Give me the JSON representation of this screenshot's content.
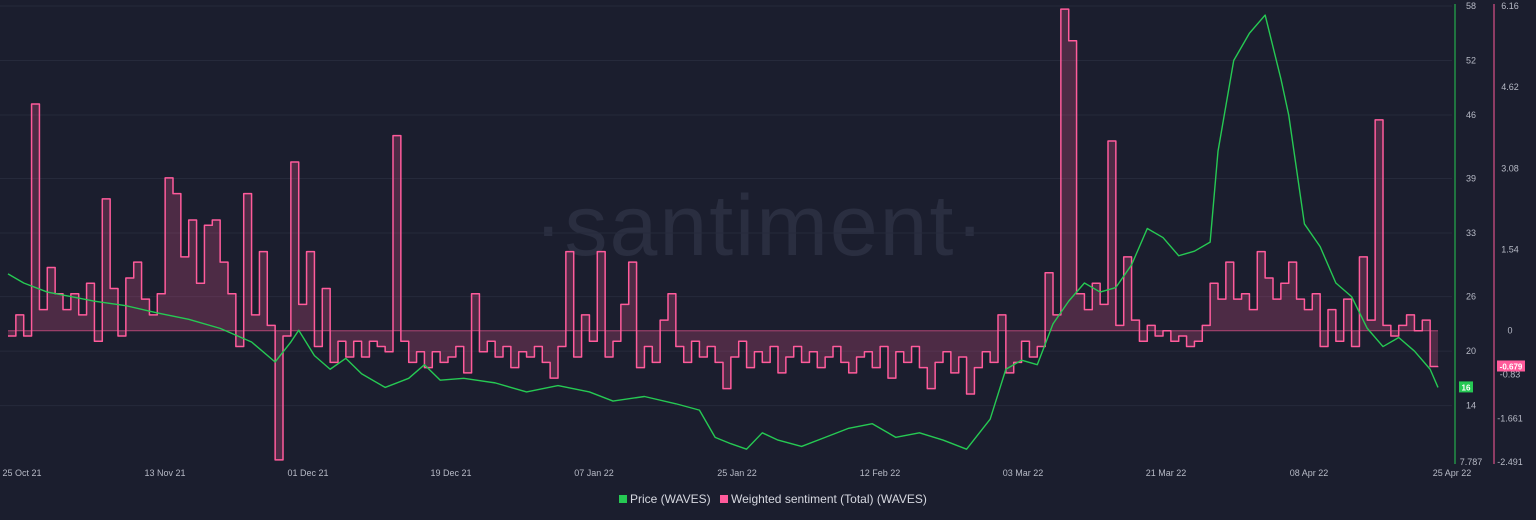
{
  "watermark": "·santiment·",
  "legend": [
    {
      "label": "Price (WAVES)",
      "color": "#26c953"
    },
    {
      "label": "Weighted sentiment (Total) (WAVES)",
      "color": "#ff5b9b"
    }
  ],
  "badges": {
    "price_last": "16",
    "sentiment_last": "-0.679"
  },
  "chart_data": {
    "type": "line",
    "x_ticks": [
      "25 Oct 21",
      "13 Nov 21",
      "01 Dec 21",
      "19 Dec 21",
      "07 Jan 22",
      "25 Jan 22",
      "12 Feb 22",
      "03 Mar 22",
      "21 Mar 22",
      "08 Apr 22",
      "25 Apr 22"
    ],
    "x_range": [
      "2021-10-25",
      "2022-04-25"
    ],
    "left_axis_ticks": [
      "58",
      "52",
      "46",
      "39",
      "33",
      "26",
      "20",
      "14",
      "7.787"
    ],
    "left_ylim": [
      7.787,
      58
    ],
    "right_axis_ticks": [
      "6.16",
      "4.62",
      "3.08",
      "1.54",
      "0",
      "-0.83",
      "-1.661",
      "-2.491"
    ],
    "right_ylim": [
      -2.491,
      6.16
    ],
    "series": [
      {
        "name": "Price (WAVES)",
        "axis": "left",
        "color": "#26c953",
        "points": [
          [
            "2021-10-25",
            28.5
          ],
          [
            "2021-10-27",
            27.5
          ],
          [
            "2021-10-30",
            26.5
          ],
          [
            "2021-11-02",
            26
          ],
          [
            "2021-11-05",
            25.5
          ],
          [
            "2021-11-09",
            25
          ],
          [
            "2021-11-13",
            24.2
          ],
          [
            "2021-11-17",
            23.5
          ],
          [
            "2021-11-21",
            22.5
          ],
          [
            "2021-11-25",
            21
          ],
          [
            "2021-11-28",
            18.8
          ],
          [
            "2021-11-30",
            21
          ],
          [
            "2021-12-01",
            22.3
          ],
          [
            "2021-12-03",
            19.5
          ],
          [
            "2021-12-05",
            18
          ],
          [
            "2021-12-07",
            19.2
          ],
          [
            "2021-12-09",
            17.5
          ],
          [
            "2021-12-12",
            16
          ],
          [
            "2021-12-15",
            17
          ],
          [
            "2021-12-17",
            18.5
          ],
          [
            "2021-12-19",
            16.8
          ],
          [
            "2021-12-22",
            17
          ],
          [
            "2021-12-26",
            16.5
          ],
          [
            "2021-12-30",
            15.5
          ],
          [
            "2022-01-03",
            16.2
          ],
          [
            "2022-01-07",
            15.5
          ],
          [
            "2022-01-10",
            14.5
          ],
          [
            "2022-01-14",
            15
          ],
          [
            "2022-01-18",
            14.2
          ],
          [
            "2022-01-21",
            13.5
          ],
          [
            "2022-01-23",
            10.5
          ],
          [
            "2022-01-25",
            9.8
          ],
          [
            "2022-01-27",
            9.2
          ],
          [
            "2022-01-29",
            11
          ],
          [
            "2022-01-31",
            10.2
          ],
          [
            "2022-02-03",
            9.5
          ],
          [
            "2022-02-06",
            10.5
          ],
          [
            "2022-02-09",
            11.5
          ],
          [
            "2022-02-12",
            12
          ],
          [
            "2022-02-15",
            10.5
          ],
          [
            "2022-02-18",
            11
          ],
          [
            "2022-02-21",
            10.2
          ],
          [
            "2022-02-24",
            9.2
          ],
          [
            "2022-02-27",
            12.5
          ],
          [
            "2022-03-01",
            18
          ],
          [
            "2022-03-03",
            19
          ],
          [
            "2022-03-05",
            18.5
          ],
          [
            "2022-03-07",
            23
          ],
          [
            "2022-03-09",
            25.5
          ],
          [
            "2022-03-11",
            27.5
          ],
          [
            "2022-03-13",
            26.5
          ],
          [
            "2022-03-15",
            27
          ],
          [
            "2022-03-17",
            29.5
          ],
          [
            "2022-03-19",
            33.5
          ],
          [
            "2022-03-21",
            32.5
          ],
          [
            "2022-03-23",
            30.5
          ],
          [
            "2022-03-25",
            31
          ],
          [
            "2022-03-27",
            32
          ],
          [
            "2022-03-28",
            42
          ],
          [
            "2022-03-30",
            52
          ],
          [
            "2022-04-01",
            55
          ],
          [
            "2022-04-03",
            57
          ],
          [
            "2022-04-05",
            50
          ],
          [
            "2022-04-06",
            46
          ],
          [
            "2022-04-08",
            34
          ],
          [
            "2022-04-10",
            31.5
          ],
          [
            "2022-04-12",
            27.5
          ],
          [
            "2022-04-14",
            26
          ],
          [
            "2022-04-16",
            22.5
          ],
          [
            "2022-04-18",
            20.5
          ],
          [
            "2022-04-20",
            21.5
          ],
          [
            "2022-04-22",
            20
          ],
          [
            "2022-04-24",
            18
          ],
          [
            "2022-04-25",
            16
          ]
        ]
      },
      {
        "name": "Weighted sentiment (Total) (WAVES)",
        "axis": "right",
        "color": "#ff5b9b",
        "points": [
          [
            "2021-10-25",
            -0.1
          ],
          [
            "2021-10-26",
            0.3
          ],
          [
            "2021-10-27",
            -0.1
          ],
          [
            "2021-10-28",
            4.3
          ],
          [
            "2021-10-29",
            0.4
          ],
          [
            "2021-10-30",
            1.2
          ],
          [
            "2021-10-31",
            0.7
          ],
          [
            "2021-11-01",
            0.4
          ],
          [
            "2021-11-02",
            0.7
          ],
          [
            "2021-11-03",
            0.3
          ],
          [
            "2021-11-04",
            0.9
          ],
          [
            "2021-11-05",
            -0.2
          ],
          [
            "2021-11-06",
            2.5
          ],
          [
            "2021-11-07",
            0.8
          ],
          [
            "2021-11-08",
            -0.1
          ],
          [
            "2021-11-09",
            1.0
          ],
          [
            "2021-11-10",
            1.3
          ],
          [
            "2021-11-11",
            0.6
          ],
          [
            "2021-11-12",
            0.3
          ],
          [
            "2021-11-13",
            0.7
          ],
          [
            "2021-11-14",
            2.9
          ],
          [
            "2021-11-15",
            2.6
          ],
          [
            "2021-11-16",
            1.4
          ],
          [
            "2021-11-17",
            2.1
          ],
          [
            "2021-11-18",
            0.9
          ],
          [
            "2021-11-19",
            2.0
          ],
          [
            "2021-11-20",
            2.1
          ],
          [
            "2021-11-21",
            1.3
          ],
          [
            "2021-11-22",
            0.7
          ],
          [
            "2021-11-23",
            -0.3
          ],
          [
            "2021-11-24",
            2.6
          ],
          [
            "2021-11-25",
            0.3
          ],
          [
            "2021-11-26",
            1.5
          ],
          [
            "2021-11-27",
            0.1
          ],
          [
            "2021-11-28",
            -2.45
          ],
          [
            "2021-11-29",
            -0.1
          ],
          [
            "2021-11-30",
            3.2
          ],
          [
            "2021-12-01",
            0.5
          ],
          [
            "2021-12-02",
            1.5
          ],
          [
            "2021-12-03",
            -0.3
          ],
          [
            "2021-12-04",
            0.8
          ],
          [
            "2021-12-05",
            -0.6
          ],
          [
            "2021-12-06",
            -0.2
          ],
          [
            "2021-12-07",
            -0.5
          ],
          [
            "2021-12-08",
            -0.2
          ],
          [
            "2021-12-09",
            -0.5
          ],
          [
            "2021-12-10",
            -0.2
          ],
          [
            "2021-12-11",
            -0.3
          ],
          [
            "2021-12-12",
            -0.4
          ],
          [
            "2021-12-13",
            3.7
          ],
          [
            "2021-12-14",
            -0.2
          ],
          [
            "2021-12-15",
            -0.6
          ],
          [
            "2021-12-16",
            -0.4
          ],
          [
            "2021-12-17",
            -0.7
          ],
          [
            "2021-12-18",
            -0.4
          ],
          [
            "2021-12-19",
            -0.6
          ],
          [
            "2021-12-20",
            -0.5
          ],
          [
            "2021-12-21",
            -0.3
          ],
          [
            "2021-12-22",
            -0.8
          ],
          [
            "2021-12-23",
            0.7
          ],
          [
            "2021-12-24",
            -0.4
          ],
          [
            "2021-12-25",
            -0.2
          ],
          [
            "2021-12-26",
            -0.5
          ],
          [
            "2021-12-27",
            -0.3
          ],
          [
            "2021-12-28",
            -0.7
          ],
          [
            "2021-12-29",
            -0.4
          ],
          [
            "2021-12-30",
            -0.5
          ],
          [
            "2021-12-31",
            -0.3
          ],
          [
            "2022-01-01",
            -0.6
          ],
          [
            "2022-01-02",
            -0.9
          ],
          [
            "2022-01-03",
            -0.3
          ],
          [
            "2022-01-04",
            1.5
          ],
          [
            "2022-01-05",
            -0.5
          ],
          [
            "2022-01-06",
            0.3
          ],
          [
            "2022-01-07",
            -0.2
          ],
          [
            "2022-01-08",
            1.5
          ],
          [
            "2022-01-09",
            -0.5
          ],
          [
            "2022-01-10",
            -0.2
          ],
          [
            "2022-01-11",
            0.5
          ],
          [
            "2022-01-12",
            1.3
          ],
          [
            "2022-01-13",
            -0.7
          ],
          [
            "2022-01-14",
            -0.3
          ],
          [
            "2022-01-15",
            -0.6
          ],
          [
            "2022-01-16",
            0.2
          ],
          [
            "2022-01-17",
            0.7
          ],
          [
            "2022-01-18",
            -0.3
          ],
          [
            "2022-01-19",
            -0.6
          ],
          [
            "2022-01-20",
            -0.2
          ],
          [
            "2022-01-21",
            -0.5
          ],
          [
            "2022-01-22",
            -0.3
          ],
          [
            "2022-01-23",
            -0.6
          ],
          [
            "2022-01-24",
            -1.1
          ],
          [
            "2022-01-25",
            -0.5
          ],
          [
            "2022-01-26",
            -0.2
          ],
          [
            "2022-01-27",
            -0.7
          ],
          [
            "2022-01-28",
            -0.4
          ],
          [
            "2022-01-29",
            -0.6
          ],
          [
            "2022-01-30",
            -0.3
          ],
          [
            "2022-01-31",
            -0.8
          ],
          [
            "2022-02-01",
            -0.5
          ],
          [
            "2022-02-02",
            -0.3
          ],
          [
            "2022-02-03",
            -0.6
          ],
          [
            "2022-02-04",
            -0.4
          ],
          [
            "2022-02-05",
            -0.7
          ],
          [
            "2022-02-06",
            -0.5
          ],
          [
            "2022-02-07",
            -0.3
          ],
          [
            "2022-02-08",
            -0.6
          ],
          [
            "2022-02-09",
            -0.8
          ],
          [
            "2022-02-10",
            -0.5
          ],
          [
            "2022-02-11",
            -0.4
          ],
          [
            "2022-02-12",
            -0.7
          ],
          [
            "2022-02-13",
            -0.3
          ],
          [
            "2022-02-14",
            -0.9
          ],
          [
            "2022-02-15",
            -0.4
          ],
          [
            "2022-02-16",
            -0.6
          ],
          [
            "2022-02-17",
            -0.3
          ],
          [
            "2022-02-18",
            -0.7
          ],
          [
            "2022-02-19",
            -1.1
          ],
          [
            "2022-02-20",
            -0.6
          ],
          [
            "2022-02-21",
            -0.4
          ],
          [
            "2022-02-22",
            -0.8
          ],
          [
            "2022-02-23",
            -0.5
          ],
          [
            "2022-02-24",
            -1.2
          ],
          [
            "2022-02-25",
            -0.7
          ],
          [
            "2022-02-26",
            -0.4
          ],
          [
            "2022-02-27",
            -0.6
          ],
          [
            "2022-02-28",
            0.3
          ],
          [
            "2022-03-01",
            -0.8
          ],
          [
            "2022-03-02",
            -0.6
          ],
          [
            "2022-03-03",
            -0.2
          ],
          [
            "2022-03-04",
            -0.5
          ],
          [
            "2022-03-05",
            -0.3
          ],
          [
            "2022-03-06",
            1.1
          ],
          [
            "2022-03-07",
            0.3
          ],
          [
            "2022-03-08",
            6.1
          ],
          [
            "2022-03-09",
            5.5
          ],
          [
            "2022-03-10",
            0.7
          ],
          [
            "2022-03-11",
            0.4
          ],
          [
            "2022-03-12",
            0.9
          ],
          [
            "2022-03-13",
            0.5
          ],
          [
            "2022-03-14",
            3.6
          ],
          [
            "2022-03-15",
            0.1
          ],
          [
            "2022-03-16",
            1.4
          ],
          [
            "2022-03-17",
            0.2
          ],
          [
            "2022-03-18",
            -0.2
          ],
          [
            "2022-03-19",
            0.1
          ],
          [
            "2022-03-20",
            -0.1
          ],
          [
            "2022-03-21",
            0
          ],
          [
            "2022-03-22",
            -0.2
          ],
          [
            "2022-03-23",
            -0.1
          ],
          [
            "2022-03-24",
            -0.3
          ],
          [
            "2022-03-25",
            -0.2
          ],
          [
            "2022-03-26",
            0.1
          ],
          [
            "2022-03-27",
            0.9
          ],
          [
            "2022-03-28",
            0.6
          ],
          [
            "2022-03-29",
            1.3
          ],
          [
            "2022-03-30",
            0.6
          ],
          [
            "2022-03-31",
            0.7
          ],
          [
            "2022-04-01",
            0.4
          ],
          [
            "2022-04-02",
            1.5
          ],
          [
            "2022-04-03",
            1.0
          ],
          [
            "2022-04-04",
            0.6
          ],
          [
            "2022-04-05",
            0.9
          ],
          [
            "2022-04-06",
            1.3
          ],
          [
            "2022-04-07",
            0.6
          ],
          [
            "2022-04-08",
            0.4
          ],
          [
            "2022-04-09",
            0.7
          ],
          [
            "2022-04-10",
            -0.3
          ],
          [
            "2022-04-11",
            0.4
          ],
          [
            "2022-04-12",
            -0.2
          ],
          [
            "2022-04-13",
            0.6
          ],
          [
            "2022-04-14",
            -0.3
          ],
          [
            "2022-04-15",
            1.4
          ],
          [
            "2022-04-16",
            0.2
          ],
          [
            "2022-04-17",
            4.0
          ],
          [
            "2022-04-18",
            0.1
          ],
          [
            "2022-04-19",
            -0.1
          ],
          [
            "2022-04-20",
            0.1
          ],
          [
            "2022-04-21",
            0.3
          ],
          [
            "2022-04-22",
            0.0
          ],
          [
            "2022-04-23",
            0.2
          ],
          [
            "2022-04-24",
            -0.68
          ],
          [
            "2022-04-25",
            -0.679
          ]
        ]
      }
    ],
    "grid": true,
    "legend_position": "bottom-center"
  }
}
